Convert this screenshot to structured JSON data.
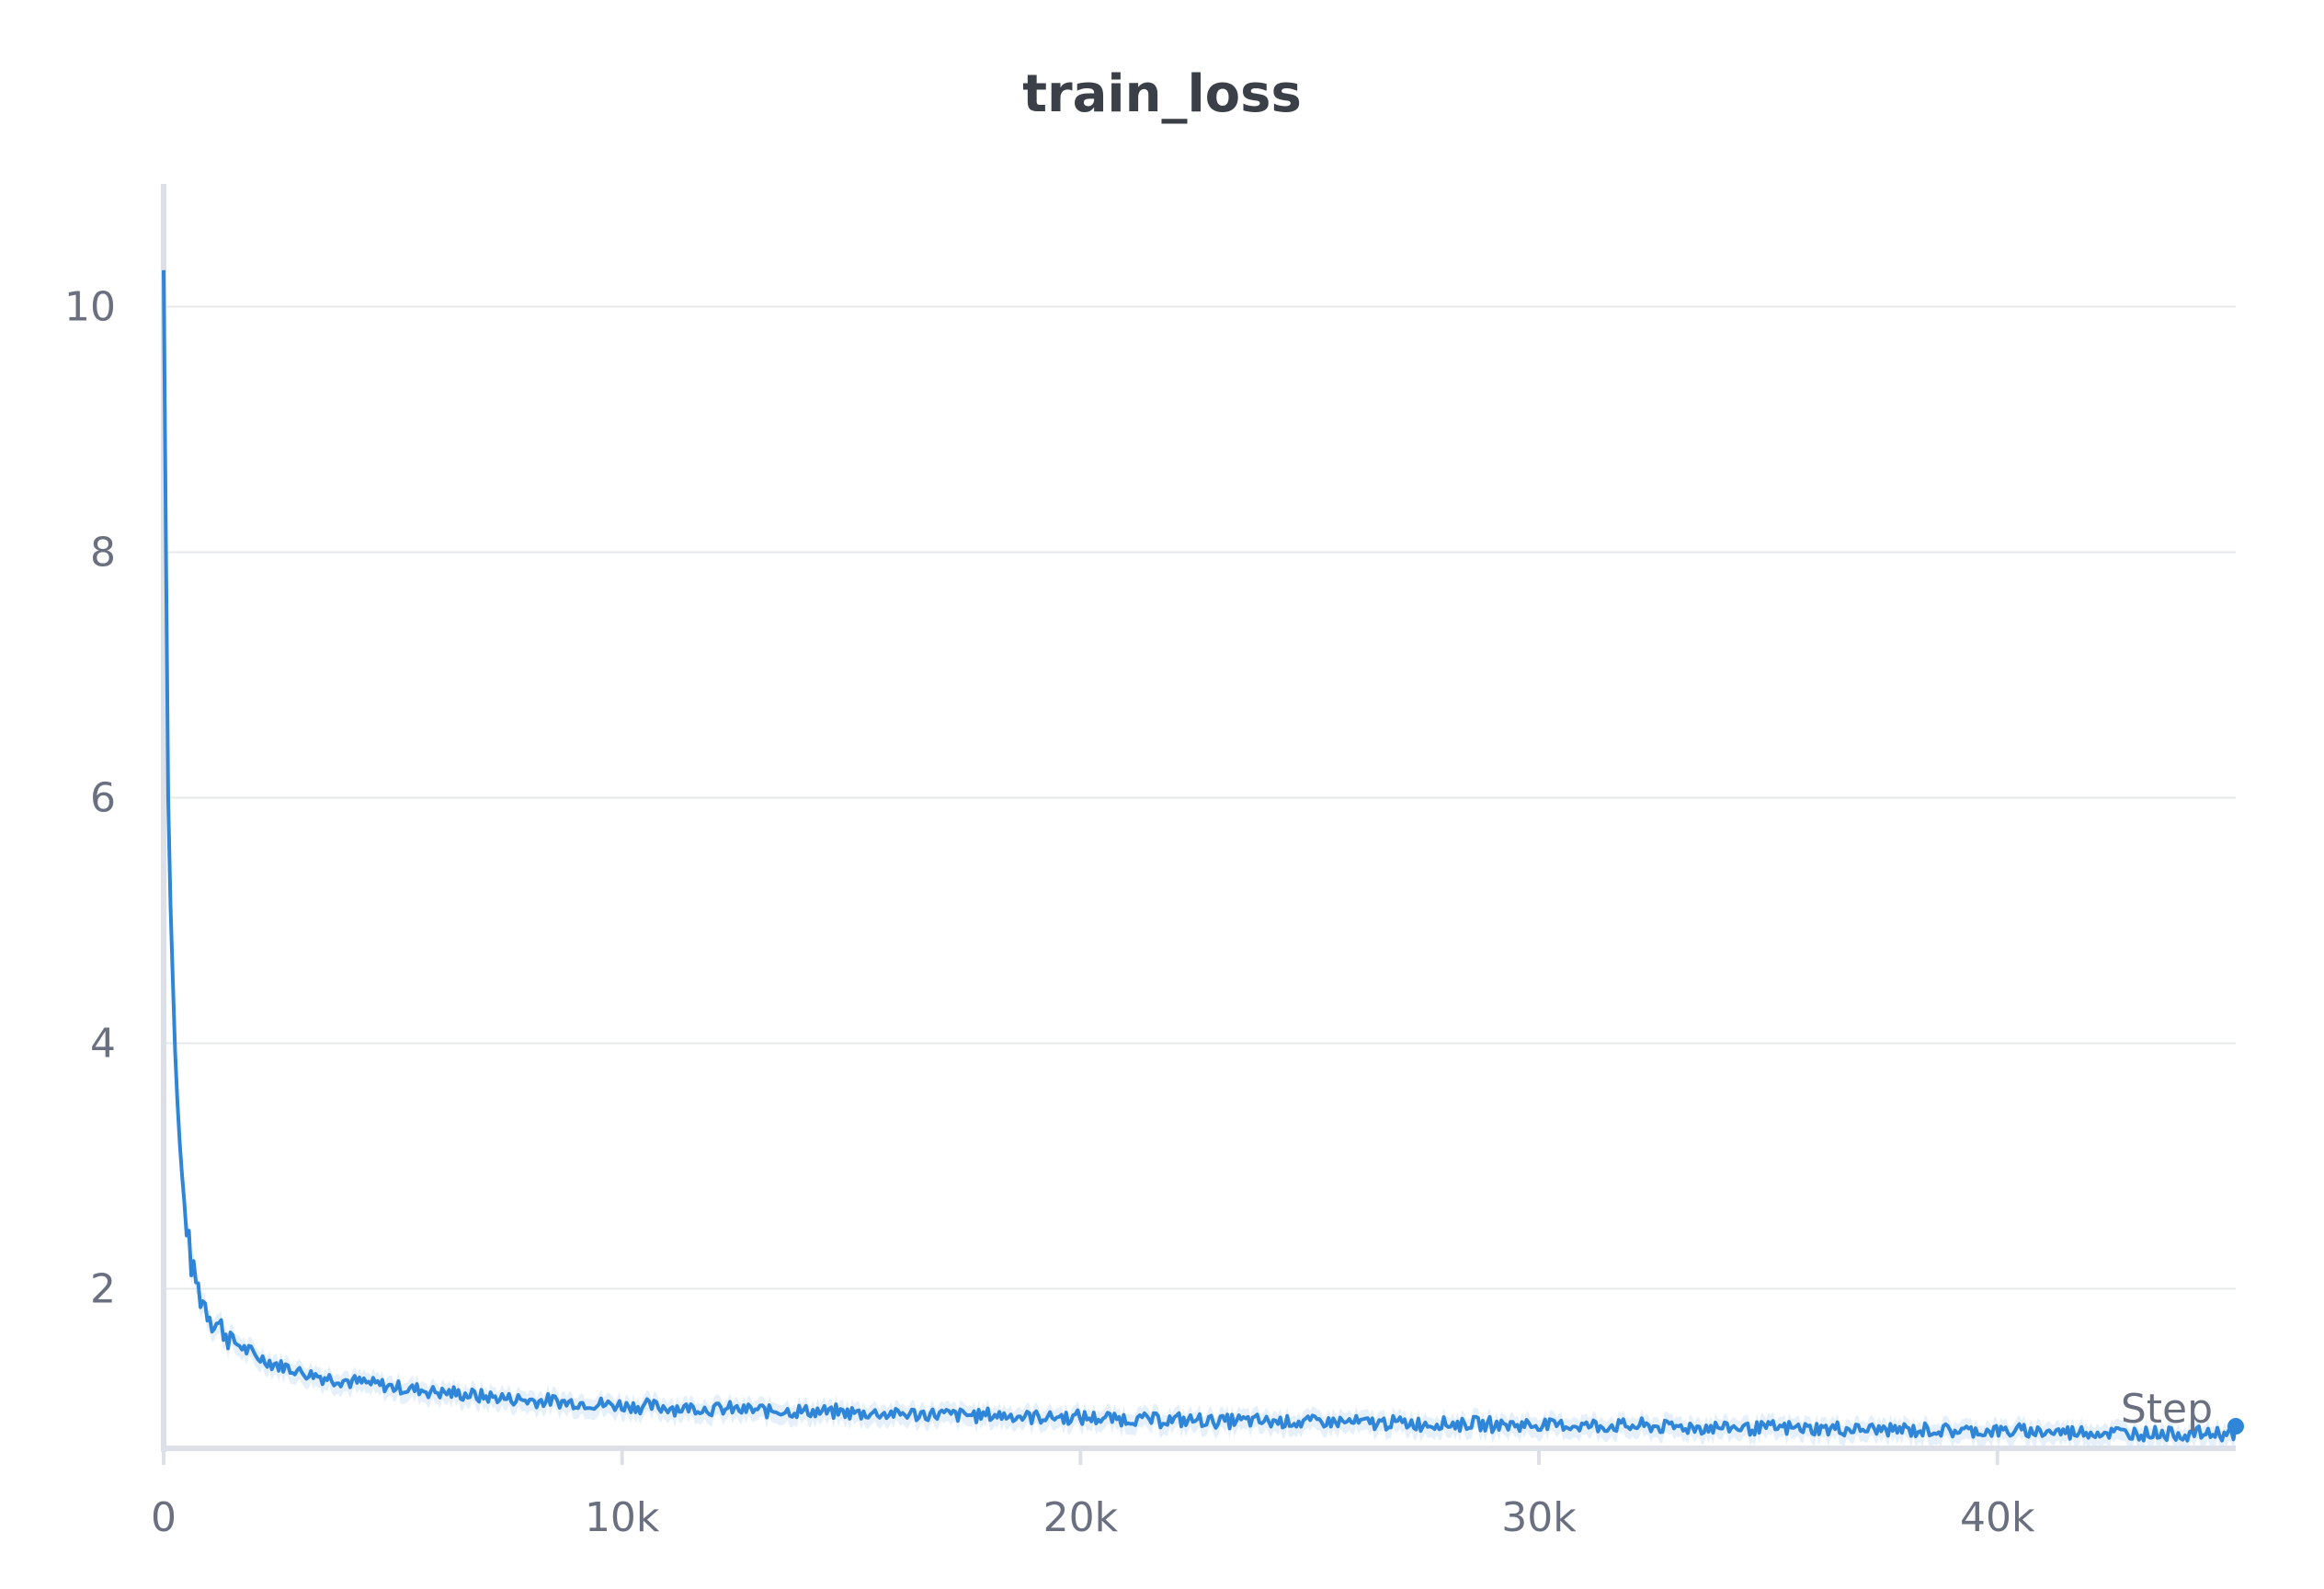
{
  "chart_data": {
    "type": "line",
    "title": "train_loss",
    "xlabel": "Step",
    "ylabel": "",
    "xlim": [
      0,
      45200
    ],
    "ylim": [
      0.7,
      11.0
    ],
    "xticks": [
      0,
      10000,
      20000,
      30000,
      40000
    ],
    "xtick_labels": [
      "0",
      "10k",
      "20k",
      "30k",
      "40k"
    ],
    "yticks": [
      2,
      4,
      6,
      8,
      10
    ],
    "ytick_labels": [
      "2",
      "4",
      "6",
      "8",
      "10"
    ],
    "grid": true,
    "legend": "none",
    "colors": {
      "line": "#2f86d8",
      "band": "#cfe3f7",
      "grid": "#e6e8ec",
      "axis": "#dde0e6"
    },
    "series": [
      {
        "x": [
          0,
          100,
          200,
          300,
          400,
          500,
          600,
          800,
          1000,
          1200,
          1500,
          2000,
          2500,
          3000,
          3500,
          4000,
          5000,
          6000,
          7000,
          8000,
          9000,
          10000,
          12000,
          14000,
          16000,
          18000,
          20000,
          22000,
          24000,
          26000,
          28000,
          30000,
          32000,
          34000,
          36000,
          38000,
          40000,
          42000,
          44000,
          45200
        ],
        "y": [
          10.3,
          6.0,
          4.5,
          3.5,
          2.9,
          2.5,
          2.2,
          1.95,
          1.8,
          1.7,
          1.58,
          1.45,
          1.38,
          1.32,
          1.28,
          1.25,
          1.2,
          1.16,
          1.12,
          1.09,
          1.07,
          1.05,
          1.02,
          1.0,
          0.98,
          0.97,
          0.95,
          0.93,
          0.92,
          0.91,
          0.9,
          0.89,
          0.88,
          0.87,
          0.86,
          0.85,
          0.84,
          0.83,
          0.82,
          0.82
        ]
      }
    ]
  }
}
